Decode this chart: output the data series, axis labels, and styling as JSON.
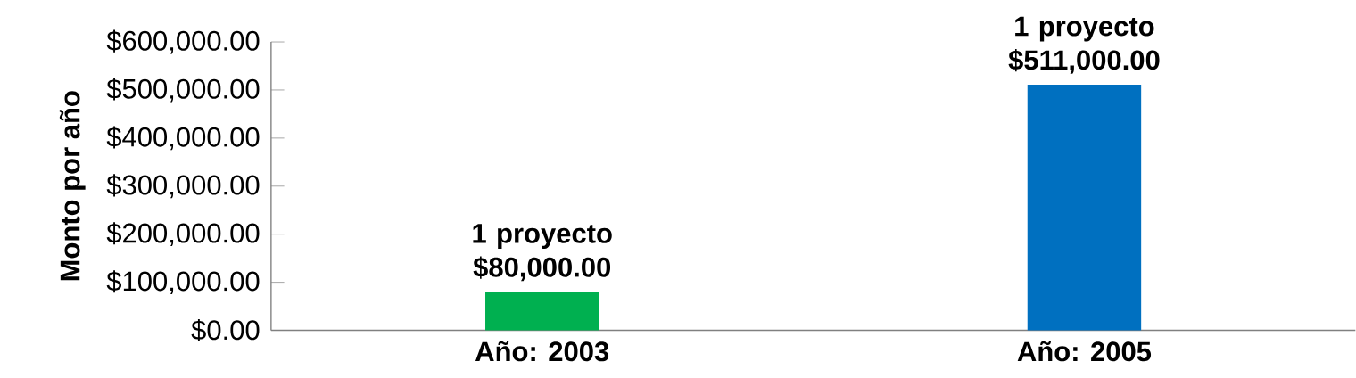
{
  "chart_data": {
    "type": "bar",
    "ylabel": "Monto por año",
    "categories": [
      "Año: 2003",
      "Año: 2005"
    ],
    "values": [
      80000,
      511000
    ],
    "colors": [
      "#00b050",
      "#0070c0"
    ],
    "value_labels": [
      "1 proyecto $80,000.00",
      "1 proyecto $511,000.00"
    ],
    "ylim": [
      0,
      600000
    ],
    "yticks": [
      {
        "value": 0,
        "label": "$0.00"
      },
      {
        "value": 100000,
        "label": "$100,000.00"
      },
      {
        "value": 200000,
        "label": "$200,000.00"
      },
      {
        "value": 300000,
        "label": "$300,000.00"
      },
      {
        "value": 400000,
        "label": "$400,000.00"
      },
      {
        "value": 500000,
        "label": "$500,000.00"
      },
      {
        "value": 600000,
        "label": "$600,000.00"
      }
    ],
    "grid": false
  }
}
